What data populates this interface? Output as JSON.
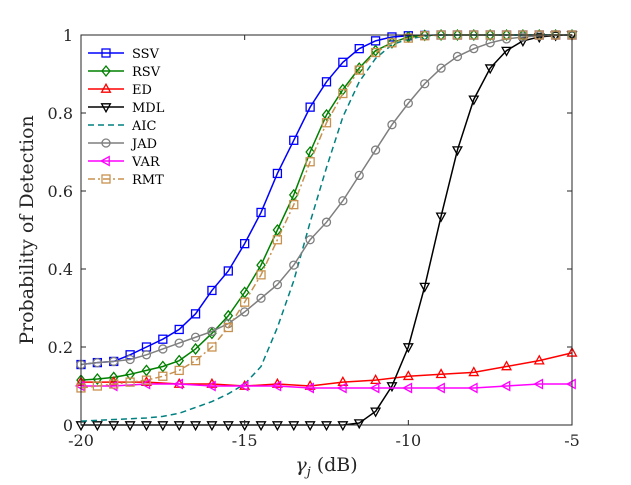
{
  "chart_data": {
    "type": "line",
    "title": "",
    "xlabel_symbol": "γ",
    "xlabel_subscript": "j",
    "xlabel_unit": "(dB)",
    "ylabel": "Probability of Detection",
    "xlim": [
      -20,
      -5
    ],
    "ylim": [
      0,
      1
    ],
    "xticks": [
      -20,
      -15,
      -10,
      -5
    ],
    "yticks": [
      0,
      0.2,
      0.4,
      0.6,
      0.8,
      1
    ],
    "ytick_labels": [
      "0",
      "0.2",
      "0.4",
      "0.6",
      "0.8",
      "1"
    ],
    "grid": false,
    "legend_position": "top-left",
    "series": [
      {
        "name": "SSV",
        "color": "#0000ff",
        "dash": "solid",
        "marker": "square",
        "x": [
          -20,
          -19.5,
          -19,
          -18.5,
          -18,
          -17.5,
          -17,
          -16.5,
          -16,
          -15.5,
          -15,
          -14.5,
          -14,
          -13.5,
          -13,
          -12.5,
          -12,
          -11.5,
          -11,
          -10.5,
          -10,
          -9.5,
          -9,
          -8.5,
          -8,
          -7.5,
          -7,
          -6.5,
          -6,
          -5.5,
          -5
        ],
        "y": [
          0.155,
          0.16,
          0.163,
          0.18,
          0.2,
          0.22,
          0.245,
          0.285,
          0.345,
          0.395,
          0.465,
          0.545,
          0.645,
          0.73,
          0.815,
          0.88,
          0.93,
          0.965,
          0.985,
          0.995,
          0.998,
          0.999,
          1,
          1,
          1,
          1,
          1,
          1,
          1,
          1,
          1
        ]
      },
      {
        "name": "RSV",
        "color": "#008000",
        "dash": "solid",
        "marker": "diamond",
        "x": [
          -20,
          -19.5,
          -19,
          -18.5,
          -18,
          -17.5,
          -17,
          -16.5,
          -16,
          -15.5,
          -15,
          -14.5,
          -14,
          -13.5,
          -13,
          -12.5,
          -12,
          -11.5,
          -11,
          -10.5,
          -10,
          -9.5,
          -9,
          -8.5,
          -8,
          -7.5,
          -7,
          -6.5,
          -6,
          -5.5,
          -5
        ],
        "y": [
          0.115,
          0.118,
          0.122,
          0.13,
          0.14,
          0.15,
          0.165,
          0.195,
          0.235,
          0.28,
          0.34,
          0.41,
          0.5,
          0.59,
          0.7,
          0.795,
          0.86,
          0.915,
          0.96,
          0.98,
          0.995,
          0.999,
          1,
          1,
          1,
          1,
          1,
          1,
          1,
          1,
          1
        ]
      },
      {
        "name": "ED",
        "color": "#ff0000",
        "dash": "solid",
        "marker": "triangle-up",
        "x": [
          -20,
          -19,
          -18,
          -17,
          -16,
          -15,
          -14,
          -13,
          -12,
          -11,
          -10,
          -9,
          -8,
          -7,
          -6,
          -5
        ],
        "y": [
          0.11,
          0.11,
          0.11,
          0.105,
          0.105,
          0.1,
          0.105,
          0.1,
          0.11,
          0.115,
          0.125,
          0.13,
          0.135,
          0.15,
          0.165,
          0.185
        ]
      },
      {
        "name": "MDL",
        "color": "#000000",
        "dash": "solid",
        "marker": "triangle-down",
        "x": [
          -20,
          -19.5,
          -19,
          -18.5,
          -18,
          -17.5,
          -17,
          -16.5,
          -16,
          -15.5,
          -15,
          -14.5,
          -14,
          -13.5,
          -13,
          -12.5,
          -12,
          -11.5,
          -11,
          -10.5,
          -10,
          -9.5,
          -9,
          -8.5,
          -8,
          -7.5,
          -7,
          -6.5,
          -6,
          -5.5,
          -5
        ],
        "y": [
          0,
          0,
          0,
          0,
          0,
          0,
          0,
          0,
          0,
          0,
          0,
          0,
          0,
          0,
          0,
          0,
          0,
          0.005,
          0.035,
          0.1,
          0.2,
          0.355,
          0.535,
          0.705,
          0.835,
          0.915,
          0.96,
          0.985,
          0.995,
          0.999,
          1
        ]
      },
      {
        "name": "AIC",
        "color": "#008080",
        "dash": "dashed",
        "marker": "none",
        "x": [
          -20,
          -19.5,
          -19,
          -18.5,
          -18,
          -17.5,
          -17,
          -16.5,
          -16,
          -15.5,
          -15,
          -14.5,
          -14,
          -13.5,
          -13,
          -12.5,
          -12,
          -11.5,
          -11,
          -10.5,
          -10,
          -9.5,
          -9,
          -8.5,
          -8,
          -7.5,
          -7,
          -6.5,
          -6,
          -5.5,
          -5
        ],
        "y": [
          0.01,
          0.012,
          0.014,
          0.016,
          0.018,
          0.022,
          0.03,
          0.045,
          0.06,
          0.08,
          0.105,
          0.15,
          0.25,
          0.37,
          0.52,
          0.66,
          0.79,
          0.88,
          0.94,
          0.975,
          0.99,
          0.997,
          1,
          1,
          1,
          1,
          1,
          1,
          1,
          1,
          1
        ]
      },
      {
        "name": "JAD",
        "color": "#7f7f7f",
        "dash": "solid",
        "marker": "circle",
        "x": [
          -20,
          -19.5,
          -19,
          -18.5,
          -18,
          -17.5,
          -17,
          -16.5,
          -16,
          -15.5,
          -15,
          -14.5,
          -14,
          -13.5,
          -13,
          -12.5,
          -12,
          -11.5,
          -11,
          -10.5,
          -10,
          -9.5,
          -9,
          -8.5,
          -8,
          -7.5,
          -7,
          -6.5,
          -6,
          -5.5,
          -5
        ],
        "y": [
          0.155,
          0.16,
          0.163,
          0.168,
          0.18,
          0.195,
          0.21,
          0.225,
          0.24,
          0.26,
          0.29,
          0.325,
          0.36,
          0.41,
          0.475,
          0.52,
          0.575,
          0.64,
          0.705,
          0.77,
          0.825,
          0.875,
          0.915,
          0.945,
          0.965,
          0.98,
          0.99,
          0.995,
          0.998,
          1,
          1
        ]
      },
      {
        "name": "VAR",
        "color": "#ff00ff",
        "dash": "solid",
        "marker": "triangle-left",
        "x": [
          -20,
          -19,
          -18,
          -17,
          -16,
          -15,
          -14,
          -13,
          -12,
          -11,
          -10,
          -9,
          -8,
          -7,
          -6,
          -5
        ],
        "y": [
          0.1,
          0.1,
          0.105,
          0.105,
          0.1,
          0.1,
          0.1,
          0.095,
          0.095,
          0.095,
          0.095,
          0.095,
          0.095,
          0.1,
          0.105,
          0.105
        ]
      },
      {
        "name": "RMT",
        "color": "#c8914f",
        "dash": "dashdot",
        "marker": "square",
        "x": [
          -20,
          -19.5,
          -19,
          -18.5,
          -18,
          -17.5,
          -17,
          -16.5,
          -16,
          -15.5,
          -15,
          -14.5,
          -14,
          -13.5,
          -13,
          -12.5,
          -12,
          -11.5,
          -11,
          -10.5,
          -10,
          -9.5,
          -9,
          -8.5,
          -8,
          -7.5,
          -7,
          -6.5,
          -6,
          -5.5,
          -5
        ],
        "y": [
          0.095,
          0.1,
          0.105,
          0.11,
          0.115,
          0.125,
          0.14,
          0.165,
          0.2,
          0.25,
          0.315,
          0.385,
          0.475,
          0.565,
          0.675,
          0.775,
          0.85,
          0.91,
          0.955,
          0.98,
          0.992,
          0.998,
          1,
          1,
          1,
          1,
          1,
          1,
          1,
          1,
          1
        ]
      }
    ]
  }
}
